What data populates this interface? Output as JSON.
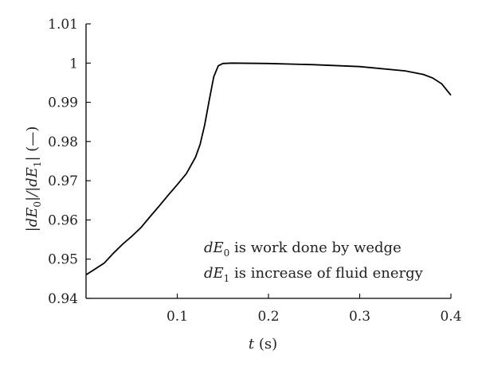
{
  "chart_data": {
    "type": "line",
    "title": "",
    "xlabel": {
      "var": "t",
      "unit": " (s)"
    },
    "ylabel": {
      "p1": "|dE",
      "s1": "0",
      "p2": "|/|dE",
      "s2": "1",
      "p3": "| (—)"
    },
    "xlim": [
      0.0,
      0.4
    ],
    "ylim": [
      0.94,
      1.01
    ],
    "xticks": [
      0.1,
      0.2,
      0.3,
      0.4
    ],
    "xtick_labels": [
      "0.1",
      "0.2",
      "0.3",
      "0.4"
    ],
    "yticks": [
      0.94,
      0.95,
      0.96,
      0.97,
      0.98,
      0.99,
      1.0,
      1.01
    ],
    "ytick_labels": [
      "0.94",
      "0.95",
      "0.96",
      "0.97",
      "0.98",
      "0.99",
      "1",
      "1.01"
    ],
    "grid": false,
    "legend": "none",
    "annotations": [
      {
        "var": "dE",
        "sub": "0",
        "text": " is work done by wedge"
      },
      {
        "var": "dE",
        "sub": "1",
        "text": " is increase of fluid energy"
      }
    ],
    "series": [
      {
        "color": "#000000",
        "x": [
          0.0,
          0.01,
          0.02,
          0.03,
          0.04,
          0.05,
          0.06,
          0.07,
          0.08,
          0.09,
          0.1,
          0.11,
          0.12,
          0.125,
          0.13,
          0.135,
          0.14,
          0.145,
          0.15,
          0.16,
          0.2,
          0.25,
          0.3,
          0.35,
          0.37,
          0.38,
          0.39,
          0.4
        ],
        "y": [
          0.946,
          0.9475,
          0.949,
          0.9515,
          0.9538,
          0.9558,
          0.958,
          0.9608,
          0.9635,
          0.9663,
          0.969,
          0.9718,
          0.976,
          0.9792,
          0.9842,
          0.9905,
          0.9965,
          0.9993,
          0.9999,
          1.0,
          0.9999,
          0.9996,
          0.9991,
          0.998,
          0.9971,
          0.9962,
          0.9947,
          0.9918
        ]
      }
    ]
  }
}
